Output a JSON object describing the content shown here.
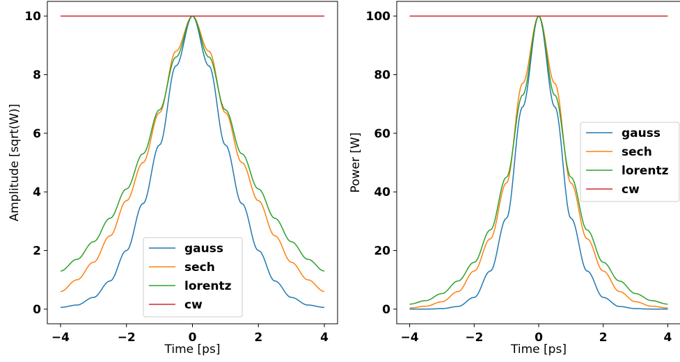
{
  "colors": {
    "gauss": "#1f77b4",
    "sech": "#ff7f0e",
    "lorentz": "#2ca02c",
    "cw": "#d62728"
  },
  "chart_data": [
    {
      "type": "line",
      "xlabel": "Time [ps]",
      "ylabel": "Amplitude [sqrt(W)]",
      "xlim": [
        -4.4,
        4.4
      ],
      "ylim": [
        -0.5,
        10.5
      ],
      "xticks": [
        -4,
        -2,
        0,
        2,
        4
      ],
      "yticks": [
        0,
        2,
        4,
        6,
        8,
        10
      ],
      "grid": false,
      "legend_position": "lower-center",
      "x": [
        -4,
        -3.5,
        -3,
        -2.5,
        -2,
        -1.5,
        -1,
        -0.5,
        0,
        0.5,
        1,
        1.5,
        2,
        2.5,
        3,
        3.5,
        4
      ],
      "series": [
        {
          "name": "gauss",
          "color": "gauss",
          "values": [
            0.06,
            0.14,
            0.4,
            0.96,
            2.0,
            3.6,
            5.6,
            8.3,
            10.0,
            8.3,
            5.6,
            3.6,
            2.0,
            0.96,
            0.4,
            0.14,
            0.06
          ]
        },
        {
          "name": "sech",
          "color": "sech",
          "values": [
            0.6,
            1.0,
            1.6,
            2.5,
            3.7,
            5.0,
            6.7,
            8.8,
            10.0,
            8.8,
            6.7,
            5.0,
            3.7,
            2.5,
            1.6,
            1.0,
            0.6
          ]
        },
        {
          "name": "lorentz",
          "color": "lorentz",
          "values": [
            1.3,
            1.7,
            2.3,
            3.1,
            4.1,
            5.3,
            6.8,
            8.6,
            10.0,
            8.6,
            6.8,
            5.3,
            4.1,
            3.1,
            2.3,
            1.7,
            1.3
          ]
        },
        {
          "name": "cw",
          "color": "cw",
          "values": [
            10,
            10,
            10,
            10,
            10,
            10,
            10,
            10,
            10,
            10,
            10,
            10,
            10,
            10,
            10,
            10,
            10
          ]
        }
      ]
    },
    {
      "type": "line",
      "xlabel": "Time [ps]",
      "ylabel": "Power [W]",
      "xlim": [
        -4.4,
        4.4
      ],
      "ylim": [
        -5,
        105
      ],
      "xticks": [
        -4,
        -2,
        0,
        2,
        4
      ],
      "yticks": [
        0,
        20,
        40,
        60,
        80,
        100
      ],
      "grid": false,
      "legend_position": "center-right",
      "x": [
        -4,
        -3.5,
        -3,
        -2.5,
        -2,
        -1.5,
        -1,
        -0.5,
        0,
        0.5,
        1,
        1.5,
        2,
        2.5,
        3,
        3.5,
        4
      ],
      "series": [
        {
          "name": "gauss",
          "color": "gauss",
          "values": [
            0.0,
            0.02,
            0.16,
            0.9,
            4.0,
            13,
            31,
            69,
            100,
            69,
            31,
            13,
            4.0,
            0.9,
            0.16,
            0.02,
            0.0
          ]
        },
        {
          "name": "sech",
          "color": "sech",
          "values": [
            0.4,
            1.0,
            2.5,
            6.0,
            13,
            24,
            43,
            77,
            100,
            77,
            43,
            24,
            13,
            6.0,
            2.5,
            1.0,
            0.4
          ]
        },
        {
          "name": "lorentz",
          "color": "lorentz",
          "values": [
            1.7,
            2.9,
            5.3,
            9.6,
            16,
            27,
            45,
            73,
            100,
            73,
            45,
            27,
            16,
            9.6,
            5.3,
            2.9,
            1.7
          ]
        },
        {
          "name": "cw",
          "color": "cw",
          "values": [
            100,
            100,
            100,
            100,
            100,
            100,
            100,
            100,
            100,
            100,
            100,
            100,
            100,
            100,
            100,
            100,
            100
          ]
        }
      ]
    }
  ]
}
